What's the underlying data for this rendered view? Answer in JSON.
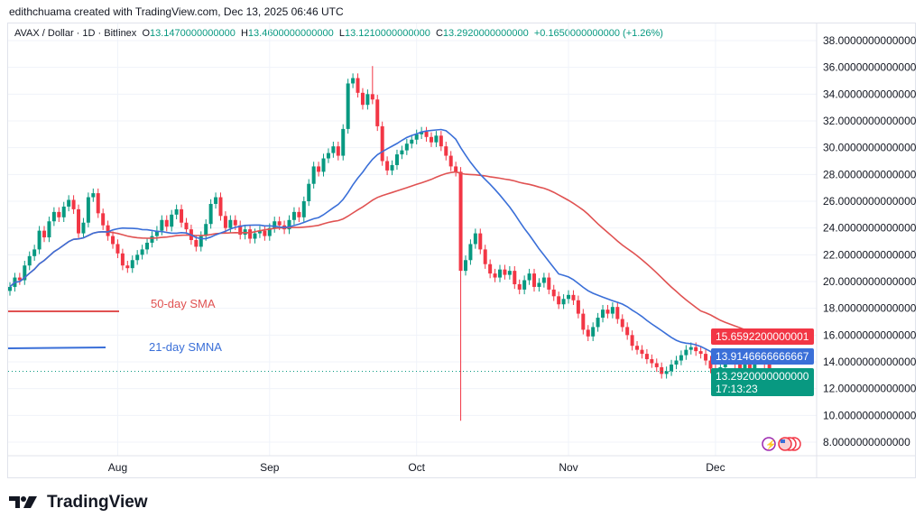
{
  "credit": "edithchuama created with TradingView.com, Dec 13, 2025 06:46 UTC",
  "legend": {
    "symbol": "AVAX / Dollar · 1D · Bitfinex",
    "open_label": "O",
    "open": "13.1470000000000",
    "high_label": "H",
    "high": "13.4600000000000",
    "low_label": "L",
    "low": "13.1210000000000",
    "close_label": "C",
    "close": "13.2920000000000",
    "change": "+0.1650000000000 (+1.26%)"
  },
  "annotations": {
    "sma50": "50-day SMA",
    "smma21": "21-day SMNA"
  },
  "price_tags": {
    "sma50": "15.6592200000001",
    "smma21": "13.9146666666667",
    "last": "13.2920000000000",
    "countdown": "17:13:23"
  },
  "branding": "TradingView",
  "colors": {
    "up": "#089981",
    "down": "#f23645",
    "sma50": "#e05252",
    "smma21": "#3a6fd8",
    "last": "#089981"
  },
  "chart_data": {
    "type": "candlestick",
    "symbol": "AVAX / Dollar",
    "interval": "1D",
    "first_date": "2025-07-10",
    "closes": [
      19.6,
      20.3,
      20.1,
      21.2,
      21.9,
      22.4,
      23.8,
      23.3,
      24.5,
      25.2,
      24.8,
      25.6,
      26.1,
      25.4,
      23.6,
      24.4,
      26.3,
      26.6,
      25.1,
      24.2,
      23.4,
      22.8,
      22.1,
      21.2,
      21.0,
      21.6,
      22.0,
      22.4,
      22.9,
      23.4,
      23.8,
      24.6,
      24.1,
      25.0,
      25.4,
      24.4,
      23.9,
      23.1,
      22.6,
      23.4,
      24.3,
      25.8,
      26.3,
      24.9,
      24.0,
      24.6,
      24.2,
      23.5,
      23.9,
      23.2,
      23.6,
      23.8,
      23.4,
      24.0,
      24.5,
      24.2,
      23.9,
      24.6,
      25.2,
      24.8,
      26.0,
      27.3,
      28.6,
      28.2,
      29.2,
      29.6,
      30.1,
      29.4,
      31.4,
      34.8,
      35.2,
      34.1,
      33.2,
      34.0,
      33.6,
      31.6,
      29.0,
      28.3,
      28.7,
      29.5,
      29.8,
      30.3,
      30.6,
      31.0,
      31.2,
      30.8,
      30.4,
      30.9,
      30.1,
      29.4,
      28.6,
      28.2,
      20.8,
      21.6,
      22.8,
      23.6,
      22.4,
      21.3,
      20.6,
      20.3,
      20.9,
      20.5,
      20.8,
      19.8,
      19.4,
      20.1,
      20.6,
      19.6,
      19.9,
      20.3,
      19.4,
      18.9,
      18.3,
      18.7,
      19.0,
      18.6,
      17.6,
      16.4,
      15.9,
      16.6,
      17.3,
      17.9,
      17.6,
      18.1,
      17.2,
      16.6,
      16.0,
      15.2,
      14.9,
      14.6,
      14.2,
      13.9,
      13.6,
      13.1,
      13.3,
      13.8,
      14.1,
      14.5,
      14.9,
      15.1,
      14.8,
      14.6,
      14.1,
      13.5,
      12.9,
      13.6,
      14.6,
      14.4,
      13.8,
      13.5,
      13.9,
      13.4,
      14.4,
      14.6,
      13.8,
      13.1,
      13.292
    ],
    "extremes": [
      {
        "date": "2025-09-22",
        "high": 36.1
      },
      {
        "date": "2025-10-10",
        "low": 9.6
      },
      {
        "date": "2025-12-13",
        "open": 13.147,
        "high": 13.46,
        "low": 13.121
      }
    ],
    "indicators": [
      {
        "name": "50-day SMA",
        "period": 50,
        "type": "SMA"
      },
      {
        "name": "21-day SMNA",
        "period": 21,
        "type": "SMA"
      }
    ],
    "x_ticks": [
      {
        "label": "Aug",
        "date": "2025-08-01"
      },
      {
        "label": "Sep",
        "date": "2025-09-01"
      },
      {
        "label": "Oct",
        "date": "2025-10-01"
      },
      {
        "label": "Nov",
        "date": "2025-11-01"
      },
      {
        "label": "Dec",
        "date": "2025-12-01"
      }
    ],
    "y_ticks": [
      "38.0000000000000",
      "36.0000000000000",
      "34.0000000000000",
      "32.0000000000000",
      "30.0000000000000",
      "28.0000000000000",
      "26.0000000000000",
      "24.0000000000000",
      "22.0000000000000",
      "20.0000000000000",
      "18.0000000000000",
      "16.0000000000000",
      "14.0000000000000",
      "12.0000000000000",
      "10.0000000000000",
      "8.0000000000000"
    ],
    "ylim": [
      8,
      38
    ],
    "grid": true
  }
}
